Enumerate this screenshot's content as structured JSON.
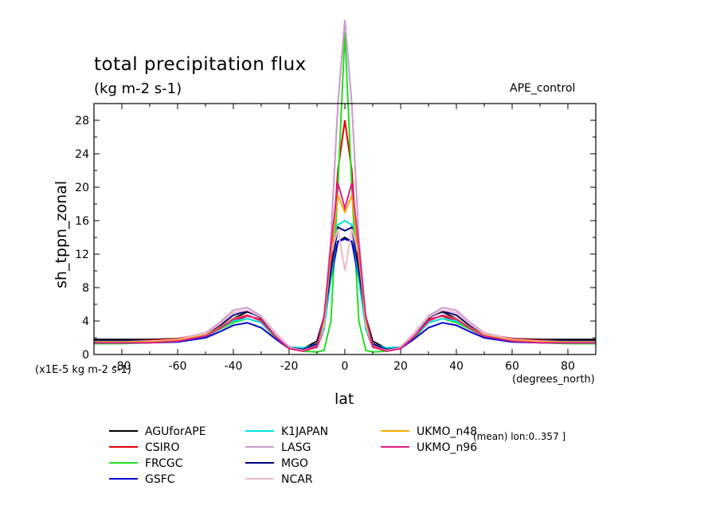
{
  "title": "total precipitation flux",
  "units": "(kg m-2 s-1)",
  "experiment": "APE_control",
  "y_unit_note": "(x1E-5 kg m-2 s-1)",
  "x_unit_note": "(degrees_north)",
  "mean_note": "(mean) lon:0..357 ]",
  "chart_data": {
    "type": "line",
    "xlabel": "lat",
    "ylabel": "sh_tppn_zonal",
    "xlim": [
      -90,
      90
    ],
    "ylim": [
      0,
      30
    ],
    "xticks": [
      -80,
      -60,
      -40,
      -20,
      0,
      20,
      40,
      60,
      80
    ],
    "xtick_labels": [
      "-80",
      "-60",
      "-40",
      "-20",
      "0",
      "20",
      "40",
      "60",
      "80"
    ],
    "yticks": [
      0,
      4,
      8,
      12,
      16,
      20,
      24,
      28
    ],
    "ytick_labels": [
      "0",
      "4",
      "8",
      "12",
      "16",
      "20",
      "24",
      "28"
    ],
    "grid": false,
    "legend_position": "bottom",
    "x": [
      -90,
      -80,
      -70,
      -60,
      -50,
      -45,
      -40,
      -35,
      -30,
      -25,
      -20,
      -15,
      -10,
      -7.5,
      -5,
      -2.5,
      0,
      2.5,
      5,
      7.5,
      10,
      15,
      20,
      25,
      30,
      35,
      40,
      45,
      50,
      60,
      70,
      80,
      90
    ],
    "series": [
      {
        "name": "AGUforAPE",
        "color": "#000000",
        "values": [
          1.8,
          1.8,
          1.8,
          1.9,
          2.4,
          3.2,
          4.3,
          5.1,
          4.5,
          2.5,
          0.9,
          0.7,
          1.6,
          4.5,
          10.0,
          13.5,
          14.0,
          13.5,
          10.0,
          4.5,
          1.6,
          0.7,
          0.9,
          2.5,
          4.5,
          5.1,
          4.3,
          3.2,
          2.4,
          1.9,
          1.8,
          1.8,
          1.8
        ]
      },
      {
        "name": "CSIRO",
        "color": "#e00000",
        "values": [
          1.6,
          1.6,
          1.7,
          1.9,
          2.5,
          3.3,
          4.0,
          4.6,
          4.2,
          2.3,
          0.8,
          0.4,
          0.9,
          3.0,
          10.0,
          22.0,
          28.0,
          22.0,
          10.0,
          3.0,
          0.9,
          0.4,
          0.8,
          2.3,
          4.2,
          4.6,
          4.0,
          3.3,
          2.5,
          1.9,
          1.7,
          1.6,
          1.6
        ]
      },
      {
        "name": "FRCGC",
        "color": "#22dd22",
        "values": [
          1.3,
          1.3,
          1.4,
          1.6,
          2.2,
          3.0,
          3.8,
          4.3,
          3.8,
          2.0,
          0.7,
          0.4,
          0.3,
          0.5,
          4.0,
          20.0,
          38.5,
          20.0,
          4.0,
          0.5,
          0.3,
          0.4,
          0.7,
          2.0,
          3.8,
          4.3,
          3.8,
          3.0,
          2.2,
          1.6,
          1.4,
          1.3,
          1.3
        ]
      },
      {
        "name": "GSFC",
        "color": "#0000cc",
        "values": [
          1.4,
          1.4,
          1.4,
          1.5,
          2.0,
          2.7,
          3.5,
          3.8,
          3.2,
          1.9,
          0.7,
          0.5,
          1.0,
          3.5,
          9.0,
          13.5,
          13.8,
          13.5,
          9.0,
          3.5,
          1.0,
          0.5,
          0.7,
          1.9,
          3.2,
          3.8,
          3.5,
          2.7,
          2.0,
          1.5,
          1.4,
          1.4,
          1.4
        ]
      },
      {
        "name": "K1JAPAN",
        "color": "#00e0e0",
        "values": [
          1.6,
          1.6,
          1.6,
          1.7,
          2.2,
          3.2,
          4.0,
          4.3,
          3.8,
          2.2,
          0.9,
          0.8,
          1.2,
          3.0,
          9.0,
          15.5,
          16.0,
          15.5,
          9.0,
          3.0,
          1.2,
          0.8,
          0.9,
          2.2,
          3.8,
          4.3,
          4.0,
          3.2,
          2.2,
          1.7,
          1.6,
          1.6,
          1.6
        ]
      },
      {
        "name": "LASG",
        "color": "#cc99cc",
        "values": [
          1.5,
          1.5,
          1.6,
          1.8,
          2.6,
          3.8,
          5.3,
          5.6,
          4.6,
          2.6,
          0.9,
          0.5,
          1.0,
          4.0,
          14.0,
          30.0,
          40.0,
          30.0,
          14.0,
          4.0,
          1.0,
          0.5,
          0.9,
          2.6,
          4.6,
          5.6,
          5.3,
          3.8,
          2.6,
          1.8,
          1.6,
          1.5,
          1.5
        ]
      },
      {
        "name": "MGO",
        "color": "#000080",
        "values": [
          1.6,
          1.6,
          1.6,
          1.8,
          2.4,
          3.4,
          4.7,
          5.2,
          4.4,
          2.4,
          0.8,
          0.6,
          1.3,
          4.0,
          10.0,
          15.2,
          14.8,
          15.2,
          10.0,
          4.0,
          1.3,
          0.6,
          0.8,
          2.4,
          4.4,
          5.2,
          4.7,
          3.4,
          2.4,
          1.8,
          1.6,
          1.6,
          1.6
        ]
      },
      {
        "name": "NCAR",
        "color": "#f0b8cc",
        "values": [
          1.5,
          1.5,
          1.6,
          1.8,
          2.5,
          3.6,
          5.0,
          5.3,
          4.5,
          2.5,
          0.8,
          0.5,
          1.0,
          3.5,
          12.0,
          15.0,
          10.0,
          15.0,
          12.0,
          3.5,
          1.0,
          0.5,
          0.8,
          2.5,
          4.5,
          5.3,
          5.0,
          3.6,
          2.5,
          1.8,
          1.6,
          1.5,
          1.5
        ]
      },
      {
        "name": "UKMO_n48",
        "color": "#f0b000",
        "values": [
          1.5,
          1.5,
          1.5,
          1.7,
          2.3,
          3.2,
          4.3,
          4.7,
          4.0,
          2.2,
          0.7,
          0.4,
          1.0,
          4.0,
          12.0,
          19.0,
          17.0,
          19.0,
          12.0,
          4.0,
          1.0,
          0.4,
          0.7,
          2.2,
          4.0,
          4.7,
          4.3,
          3.2,
          2.3,
          1.7,
          1.5,
          1.5,
          1.5
        ]
      },
      {
        "name": "UKMO_n96",
        "color": "#e0208a",
        "values": [
          1.4,
          1.4,
          1.4,
          1.6,
          2.2,
          3.1,
          4.2,
          4.7,
          4.0,
          2.2,
          0.7,
          0.4,
          1.0,
          4.5,
          13.0,
          20.5,
          17.5,
          20.5,
          13.0,
          4.5,
          1.0,
          0.4,
          0.7,
          2.2,
          4.0,
          4.7,
          4.2,
          3.1,
          2.2,
          1.6,
          1.4,
          1.4,
          1.4
        ]
      }
    ]
  }
}
